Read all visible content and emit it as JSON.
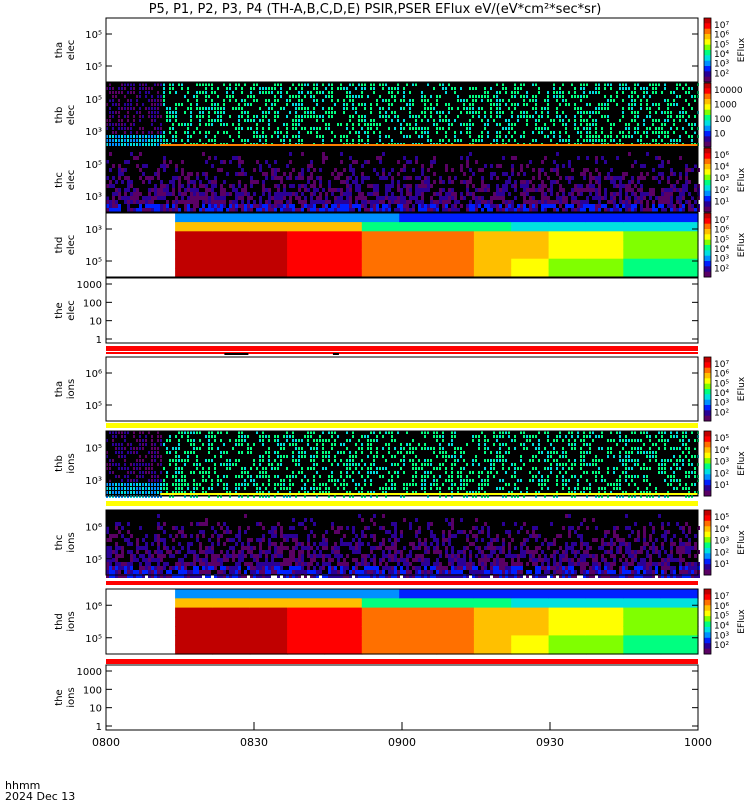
{
  "title_text": "P5, P1, P2, P3, P4 (TH-A,B,C,D,E) PSIR,PSER EFlux eV/(eV*cm²*sec*sr)",
  "time_axis": {
    "label_fmt": "hhmm",
    "date": "2024 Dec 13",
    "ticks": [
      "0800",
      "0830",
      "0900",
      "0930",
      "1000"
    ],
    "range_minutes": [
      0,
      120
    ]
  },
  "colors": {
    "map": [
      "#5a0064",
      "#2a0096",
      "#0020ff",
      "#0090ff",
      "#00e0e0",
      "#00ff80",
      "#80ff00",
      "#ffff00",
      "#ffc000",
      "#ff7000",
      "#ff0000",
      "#c00000"
    ],
    "line": "#ff0000",
    "sheath": "#ffff00"
  },
  "chart_data": [
    {
      "type": "heatmap",
      "id": "tha_elec",
      "ylabel": [
        "tha",
        "elec"
      ],
      "yscale": "log",
      "yticks": [
        "10⁵",
        "10⁵"
      ],
      "content": "empty",
      "colorbar": {
        "labels": [
          "10⁷",
          "10⁶",
          "10⁵",
          "10⁴",
          "10³",
          "10²"
        ],
        "title": "EFlux"
      }
    },
    {
      "type": "heatmap",
      "id": "thb_elec",
      "ylabel": [
        "thb",
        "elec"
      ],
      "yscale": "log",
      "yticks": [
        "10⁵",
        "10³"
      ],
      "content": "noisy",
      "start_min": 11,
      "colorbar": {
        "labels": [
          "10000",
          "1000",
          "100",
          "10"
        ],
        "title": ""
      }
    },
    {
      "type": "heatmap",
      "id": "thc_elec",
      "ylabel": [
        "thc",
        "elec"
      ],
      "yscale": "log",
      "yticks": [
        "10⁵",
        "10³"
      ],
      "content": "dark",
      "colorbar": {
        "labels": [
          "10⁶",
          "10⁴",
          "10³",
          "10²",
          "10¹"
        ],
        "title": "EFlux"
      }
    },
    {
      "type": "heatmap",
      "id": "thd_elec",
      "ylabel": [
        "thd",
        "elec"
      ],
      "yscale": "log",
      "yticks": [
        "10³",
        "10⁵"
      ],
      "content": "solid",
      "start_min": 14,
      "colorbar": {
        "labels": [
          "10⁷",
          "10⁶",
          "10⁵",
          "10⁴",
          "10³",
          "10²"
        ],
        "title": "EFlux"
      }
    },
    {
      "type": "line",
      "id": "the_elec",
      "ylabel": [
        "the",
        "elec"
      ],
      "yscale": "log",
      "yticks": [
        "1000",
        "100",
        "10",
        "1"
      ],
      "content": "flat"
    },
    {
      "type": "heatmap",
      "id": "tha_ions",
      "ylabel": [
        "tha",
        "ions"
      ],
      "yscale": "log",
      "yticks": [
        "10⁶",
        "10⁵"
      ],
      "content": "empty",
      "colorbar": {
        "labels": [
          "10⁷",
          "10⁶",
          "10⁵",
          "10⁴",
          "10³",
          "10²"
        ],
        "title": "EFlux"
      }
    },
    {
      "type": "heatmap",
      "id": "thb_ions",
      "ylabel": [
        "thb",
        "ions"
      ],
      "yscale": "log",
      "yticks": [
        "10⁵",
        "10³"
      ],
      "content": "noisy",
      "start_min": 11,
      "colorbar": {
        "labels": [
          "10⁵",
          "10⁴",
          "10³",
          "10²",
          "10¹"
        ],
        "title": "EFlux"
      }
    },
    {
      "type": "heatmap",
      "id": "thc_ions",
      "ylabel": [
        "thc",
        "ions"
      ],
      "yscale": "log",
      "yticks": [
        "10⁶",
        "10⁵"
      ],
      "content": "dark",
      "colorbar": {
        "labels": [
          "10⁵",
          "10⁴",
          "10³",
          "10²",
          "10¹"
        ],
        "title": "EFlux"
      }
    },
    {
      "type": "heatmap",
      "id": "thd_ions",
      "ylabel": [
        "thd",
        "ions"
      ],
      "yscale": "log",
      "yticks": [
        "10⁶",
        "10⁵"
      ],
      "content": "solid",
      "start_min": 14,
      "colorbar": {
        "labels": [
          "10⁷",
          "10⁶",
          "10⁵",
          "10⁴",
          "10³",
          "10²"
        ],
        "title": "EFlux"
      }
    },
    {
      "type": "line",
      "id": "the_ions",
      "ylabel": [
        "the",
        "ions"
      ],
      "yscale": "log",
      "yticks": [
        "1000",
        "100",
        "10",
        "1"
      ],
      "content": "flat"
    }
  ]
}
